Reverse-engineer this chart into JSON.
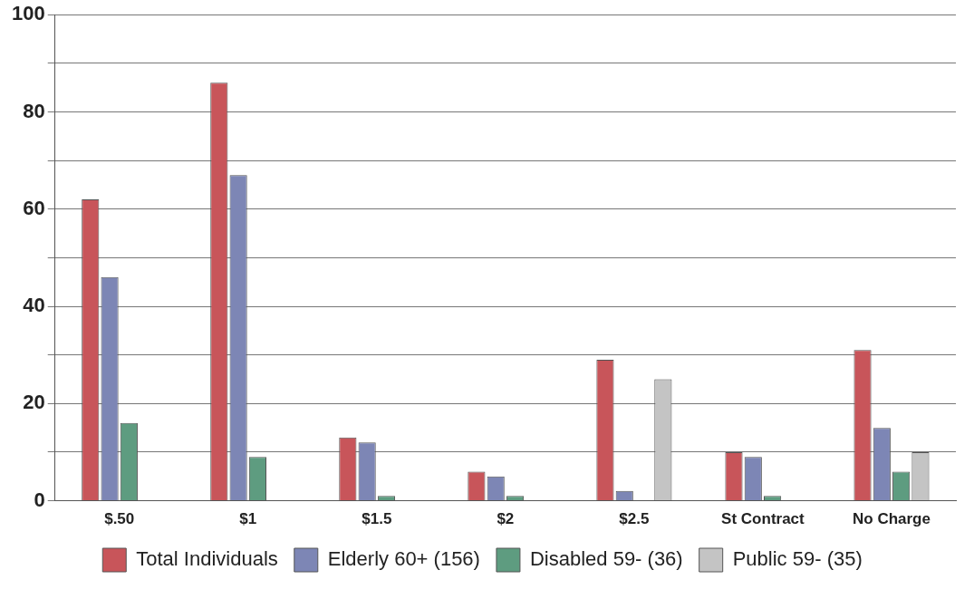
{
  "chart_data": {
    "type": "bar",
    "categories": [
      "$.50",
      "$1",
      "$1.5",
      "$2",
      "$2.5",
      "St Contract",
      "No Charge"
    ],
    "series": [
      {
        "name": "Total Individuals",
        "color": "#c8555a",
        "values": [
          62,
          86,
          13,
          6,
          29,
          10,
          31
        ]
      },
      {
        "name": "Elderly 60+ (156)",
        "color": "#7d86b5",
        "values": [
          46,
          67,
          12,
          5,
          2,
          9,
          15
        ]
      },
      {
        "name": "Disabled 59- (36)",
        "color": "#5e9c80",
        "values": [
          16,
          9,
          1,
          1,
          0,
          1,
          6
        ]
      },
      {
        "name": "Public 59- (35)",
        "color": "#c4c4c4",
        "values": [
          0,
          0,
          0,
          0,
          25,
          0,
          10
        ]
      }
    ],
    "ylim": [
      0,
      100
    ],
    "yticks": [
      0,
      {
        "value": 10,
        "label": null
      },
      20,
      {
        "value": 30,
        "label": null
      },
      40,
      {
        "value": 50,
        "label": null
      },
      60,
      {
        "value": 70,
        "label": null
      },
      80,
      {
        "value": 90,
        "label": null
      },
      100
    ],
    "grid": "y",
    "legend": "bottom"
  }
}
